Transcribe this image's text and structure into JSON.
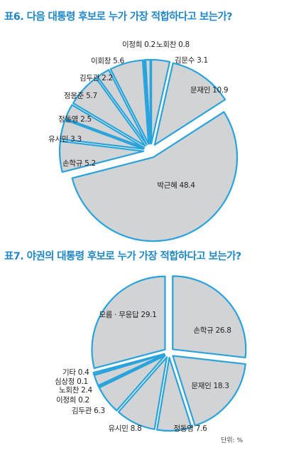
{
  "chart_data": [
    {
      "type": "pie",
      "title": "표6. 다음 대통령 후보로 누가 가장 적합하다고 보는가?",
      "slices": [
        {
          "label": "김문수",
          "value": 3.1
        },
        {
          "label": "문재인",
          "value": 10.9
        },
        {
          "label": "박근혜",
          "value": 48.4
        },
        {
          "label": "손학규",
          "value": 5.2
        },
        {
          "label": "유시민",
          "value": 3.3
        },
        {
          "label": "정동영",
          "value": 2.5
        },
        {
          "label": "정몽준",
          "value": 5.7
        },
        {
          "label": "김두관",
          "value": 2.2
        },
        {
          "label": "이회창",
          "value": 5.6
        },
        {
          "label": "이정희",
          "value": 0.2
        },
        {
          "label": "노회찬",
          "value": 0.8
        }
      ],
      "colors": {
        "fill": "#d1d3d4",
        "stroke": "#29a3dc",
        "text": "#231f20"
      }
    },
    {
      "type": "pie",
      "title": "표7. 야권의 대통령 후보로 누가 가장 적합하다고 보는가?",
      "slices": [
        {
          "label": "손학규",
          "value": 26.8
        },
        {
          "label": "문재인",
          "value": 18.3
        },
        {
          "label": "정동영",
          "value": 7.6
        },
        {
          "label": "유시민",
          "value": 8.8
        },
        {
          "label": "김두관",
          "value": 6.3
        },
        {
          "label": "이정희",
          "value": 0.2
        },
        {
          "label": "노회찬",
          "value": 2.4
        },
        {
          "label": "심상정",
          "value": 0.1
        },
        {
          "label": "기타",
          "value": 0.4
        },
        {
          "label": "모름 · 무응답",
          "value": 29.1
        }
      ],
      "unit_note": "단위: %",
      "colors": {
        "fill": "#d1d3d4",
        "stroke": "#29a3dc",
        "text": "#231f20"
      }
    }
  ]
}
